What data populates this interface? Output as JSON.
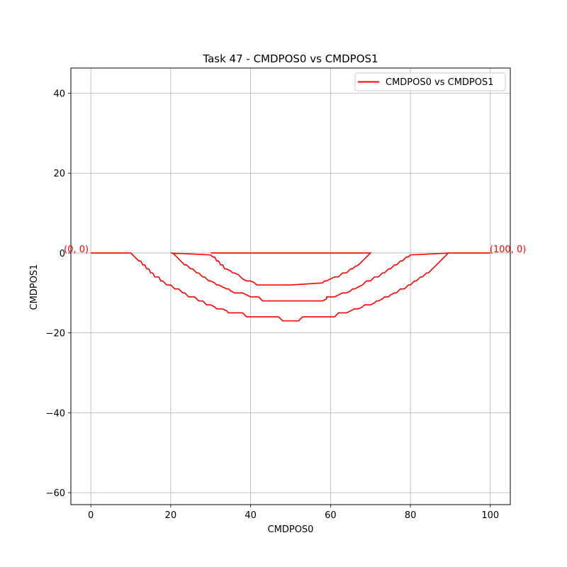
{
  "chart_data": {
    "type": "line",
    "title": "Task 47 - CMDPOS0 vs CMDPOS1",
    "xlabel": "CMDPOS0",
    "ylabel": "CMDPOS1",
    "xlim": [
      -5,
      105
    ],
    "ylim": [
      -63,
      46.3
    ],
    "xticks": [
      0,
      20,
      40,
      60,
      80,
      100
    ],
    "yticks": [
      40,
      20,
      0,
      -20,
      -40,
      -60
    ],
    "xtick_labels": [
      "0",
      "20",
      "40",
      "60",
      "80",
      "100"
    ],
    "ytick_labels": [
      "40",
      "20",
      "0",
      "−20",
      "−40",
      "−60"
    ],
    "grid": true,
    "legend_position": "top-right",
    "annotations": [
      {
        "text": "(0, 0)",
        "x": 0,
        "y": 0
      },
      {
        "text": "(100, 0)",
        "x": 100,
        "y": 0
      }
    ],
    "series": [
      {
        "name": "CMDPOS0 vs CMDPOS1",
        "color": "#ff0000",
        "x": [
          0,
          10,
          10.5,
          11,
          11.5,
          12,
          12.5,
          13,
          13.5,
          14,
          14.5,
          15,
          15.5,
          16,
          16.5,
          17,
          17.5,
          18,
          18.5,
          19,
          19.5,
          20,
          20.5,
          21,
          21.5,
          22,
          22.5,
          23,
          23.5,
          24,
          24.5,
          25,
          26,
          26.5,
          27,
          27.5,
          28,
          29,
          29.5,
          30,
          31,
          31.5,
          32,
          33,
          34,
          34.5,
          35,
          36,
          36.5,
          37,
          38,
          38.5,
          39,
          40,
          47,
          48,
          52,
          53,
          60,
          61,
          61.5,
          62,
          63,
          63.5,
          64,
          65,
          66,
          66.5,
          67,
          68,
          68.5,
          69,
          70,
          71,
          71.5,
          72,
          73,
          73.5,
          74,
          74.5,
          75,
          76,
          76.5,
          77,
          77.5,
          78,
          78.5,
          79,
          79.5,
          80,
          80.5,
          81,
          81.5,
          82,
          82.5,
          83,
          83.5,
          84,
          84.5,
          85,
          85.5,
          86,
          86.5,
          87,
          87.5,
          88,
          88.5,
          89,
          89.5,
          90,
          100,
          90,
          80,
          79.5,
          79,
          78.5,
          78,
          77.5,
          77,
          76.5,
          76,
          75.5,
          75,
          74.5,
          74,
          73.5,
          73,
          72.5,
          72,
          71,
          70.5,
          70,
          69,
          68.5,
          68,
          67,
          66,
          65.5,
          65,
          64,
          63,
          62,
          61,
          60,
          59,
          59,
          58,
          57.5,
          57,
          50,
          43,
          42.5,
          42,
          41,
          40,
          39,
          38,
          37,
          36,
          35,
          34.5,
          34,
          33,
          32,
          31.5,
          31,
          30,
          29.5,
          29,
          28.5,
          28,
          27.5,
          27,
          26.5,
          26,
          25.5,
          25,
          24.5,
          24,
          23.5,
          23,
          22.5,
          22,
          21.5,
          21,
          20.5,
          20,
          30,
          30.5,
          31,
          31.5,
          32,
          32.5,
          33,
          33.5,
          34,
          35,
          35.5,
          36,
          37,
          37.5,
          38,
          39,
          40,
          41,
          41.5,
          42,
          50,
          58,
          58.5,
          59,
          60,
          61,
          62,
          62.5,
          63,
          64,
          64.5,
          65,
          65.5,
          66,
          67,
          67.5,
          68,
          68.5,
          69,
          69.5,
          70,
          30
        ],
        "y": [
          0,
          0,
          -0.5,
          -1,
          -1.5,
          -2,
          -2,
          -3,
          -3,
          -4,
          -4,
          -5,
          -5,
          -6,
          -6,
          -6,
          -7,
          -7,
          -7.5,
          -8,
          -8,
          -8,
          -8.5,
          -9,
          -9,
          -9,
          -9.5,
          -10,
          -10,
          -10.5,
          -11,
          -11,
          -11,
          -11.5,
          -12,
          -12,
          -12,
          -13,
          -13,
          -13,
          -13.5,
          -14,
          -14,
          -14,
          -14.5,
          -15,
          -15,
          -15,
          -15,
          -15,
          -15,
          -15.5,
          -16,
          -16,
          -16,
          -17,
          -17,
          -16,
          -16,
          -16,
          -15.5,
          -15,
          -15,
          -15,
          -15,
          -14.5,
          -14,
          -14,
          -14,
          -13.5,
          -13,
          -13,
          -13,
          -12.5,
          -12,
          -12,
          -11.5,
          -11,
          -11,
          -11,
          -10.5,
          -10,
          -10,
          -9.5,
          -9,
          -9,
          -9,
          -8.5,
          -8,
          -8,
          -7.5,
          -7,
          -7,
          -6.5,
          -6,
          -6,
          -5.5,
          -5,
          -5,
          -4.5,
          -4,
          -3.5,
          -3,
          -2.5,
          -2,
          -1.5,
          -1,
          -0.5,
          0,
          0,
          0,
          0,
          -0.5,
          -1,
          -1,
          -1.5,
          -2,
          -2,
          -2.5,
          -3,
          -3,
          -3.5,
          -4,
          -4,
          -4.5,
          -5,
          -5,
          -5.5,
          -6,
          -6,
          -6.5,
          -7,
          -7,
          -7.5,
          -8,
          -8.5,
          -9,
          -9,
          -9.5,
          -10,
          -10,
          -10.5,
          -11,
          -11,
          -11,
          -11.5,
          -12,
          -12,
          -12,
          -12,
          -12,
          -11.5,
          -11,
          -11,
          -11,
          -10.5,
          -10,
          -10,
          -10,
          -9.5,
          -9,
          -9,
          -8.5,
          -8,
          -8,
          -7.5,
          -7,
          -7,
          -6.5,
          -6,
          -6,
          -5.5,
          -5,
          -5,
          -4.5,
          -4,
          -4,
          -3.5,
          -3,
          -3,
          -2.5,
          -2,
          -1.5,
          -1,
          -0.5,
          0,
          0,
          -0.5,
          -1,
          -1,
          -2,
          -2,
          -3,
          -3,
          -4,
          -4,
          -4.5,
          -5,
          -5,
          -5.5,
          -6,
          -6.5,
          -7,
          -7,
          -7.5,
          -8,
          -8,
          -8,
          -7.5,
          -7,
          -7,
          -6.5,
          -6,
          -6,
          -5.5,
          -5,
          -5,
          -4.5,
          -4,
          -4,
          -3.5,
          -3,
          -2.5,
          -2,
          -1.5,
          -1,
          -0.5,
          0,
          0
        ]
      }
    ]
  }
}
